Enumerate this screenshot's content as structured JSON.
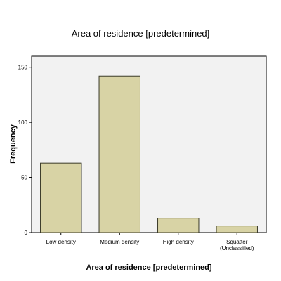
{
  "chart_data": {
    "type": "bar",
    "title": "Area of residence [predetermined]",
    "xlabel": "Area of residence [predetermined]",
    "ylabel": "Frequency",
    "categories": [
      "Low density",
      "Medium density",
      "High density",
      "Squatter (Unclassified)"
    ],
    "category_lines": [
      [
        "Low density"
      ],
      [
        "Medium density"
      ],
      [
        "High density"
      ],
      [
        "Squatter",
        "(Unclassified)"
      ]
    ],
    "values": [
      63,
      142,
      13,
      6
    ],
    "ylim": [
      0,
      160
    ],
    "yticks": [
      0,
      50,
      100,
      150
    ],
    "grid": false,
    "colors": {
      "bar_fill": "#d8d3a5",
      "bar_stroke": "#3a3a28",
      "plot_bg": "#f2f2f2"
    }
  }
}
